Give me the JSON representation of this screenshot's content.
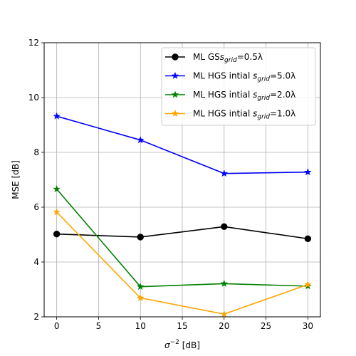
{
  "chart_data": {
    "type": "line",
    "title": "",
    "xlabel": "σ⁻² [dB]",
    "ylabel": "MSE [dB]",
    "xlim": [
      -1.5,
      31.5
    ],
    "ylim": [
      2,
      12
    ],
    "xticks": [
      0,
      5,
      10,
      15,
      20,
      25,
      30
    ],
    "yticks": [
      2,
      4,
      6,
      8,
      10,
      12
    ],
    "grid": true,
    "legend_position": "top-right",
    "x": [
      0,
      10,
      20,
      30
    ],
    "series": [
      {
        "name": "ML GS",
        "sub_base": "s",
        "sub": "grid",
        "suffix": "=0.5λ",
        "values": [
          5.02,
          4.91,
          5.29,
          4.85
        ],
        "color": "#000000",
        "marker": "circle"
      },
      {
        "name": "ML HGS intial",
        "sub_base": "s",
        "sub": "grid",
        "suffix": "=5.0λ",
        "values": [
          9.32,
          8.45,
          7.23,
          7.28
        ],
        "color": "#0000ff",
        "marker": "star"
      },
      {
        "name": "ML HGS intial",
        "sub_base": "s",
        "sub": "grid",
        "suffix": "=2.0λ",
        "values": [
          6.66,
          3.1,
          3.21,
          3.12
        ],
        "color": "#008000",
        "marker": "star"
      },
      {
        "name": "ML HGS intial",
        "sub_base": "s",
        "sub": "grid",
        "suffix": "=1.0λ",
        "values": [
          5.82,
          2.69,
          2.1,
          3.18
        ],
        "color": "#ffa500",
        "marker": "star"
      }
    ]
  }
}
